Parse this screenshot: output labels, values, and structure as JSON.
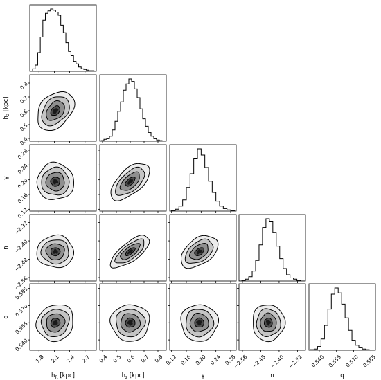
{
  "chart_data": {
    "type": "corner",
    "params": [
      {
        "key": "hR",
        "label_main": "h",
        "label_sub": "R",
        "label_unit": " [kpc]",
        "range": [
          1.62,
          2.92
        ],
        "ticks": [
          "1.8",
          "2.1",
          "2.4",
          "2.7"
        ],
        "hist": [
          [
            1.7,
            0.04
          ],
          [
            1.75,
            0.1
          ],
          [
            1.8,
            0.3
          ],
          [
            1.85,
            0.55
          ],
          [
            1.9,
            0.82
          ],
          [
            1.95,
            0.93
          ],
          [
            2.0,
            0.97
          ],
          [
            2.05,
            1.0
          ],
          [
            2.1,
            0.98
          ],
          [
            2.15,
            0.95
          ],
          [
            2.2,
            0.9
          ],
          [
            2.25,
            0.74
          ],
          [
            2.3,
            0.62
          ],
          [
            2.35,
            0.46
          ],
          [
            2.4,
            0.32
          ],
          [
            2.45,
            0.25
          ],
          [
            2.5,
            0.16
          ],
          [
            2.55,
            0.12
          ],
          [
            2.6,
            0.07
          ],
          [
            2.65,
            0.04
          ],
          [
            2.7,
            0.03
          ],
          [
            2.75,
            0.02
          ],
          [
            2.8,
            0.01
          ],
          [
            2.85,
            0.01
          ]
        ]
      },
      {
        "key": "hz",
        "label_main": "h",
        "label_sub": "z",
        "label_unit": " [kpc]",
        "range": [
          0.38,
          0.86
        ],
        "ticks": [
          "0.4",
          "0.5",
          "0.6",
          "0.7",
          "0.8"
        ],
        "hist": [
          [
            0.4,
            0.01
          ],
          [
            0.42,
            0.03
          ],
          [
            0.44,
            0.04
          ],
          [
            0.46,
            0.08
          ],
          [
            0.48,
            0.18
          ],
          [
            0.5,
            0.32
          ],
          [
            0.52,
            0.48
          ],
          [
            0.54,
            0.63
          ],
          [
            0.56,
            0.82
          ],
          [
            0.58,
            0.92
          ],
          [
            0.6,
            1.0
          ],
          [
            0.62,
            0.96
          ],
          [
            0.64,
            0.84
          ],
          [
            0.66,
            0.7
          ],
          [
            0.68,
            0.52
          ],
          [
            0.7,
            0.36
          ],
          [
            0.72,
            0.24
          ],
          [
            0.74,
            0.14
          ],
          [
            0.76,
            0.08
          ],
          [
            0.78,
            0.04
          ],
          [
            0.8,
            0.02
          ],
          [
            0.82,
            0.01
          ],
          [
            0.84,
            0.005
          ]
        ]
      },
      {
        "key": "gamma",
        "label_main": "γ",
        "label_sub": "",
        "label_unit": "",
        "range": [
          0.115,
          0.295
        ],
        "ticks": [
          "0.12",
          "0.16",
          "0.20",
          "0.24",
          "0.28"
        ],
        "hist": [
          [
            0.125,
            0.01
          ],
          [
            0.135,
            0.03
          ],
          [
            0.145,
            0.08
          ],
          [
            0.155,
            0.18
          ],
          [
            0.165,
            0.38
          ],
          [
            0.175,
            0.6
          ],
          [
            0.185,
            0.85
          ],
          [
            0.195,
            1.0
          ],
          [
            0.205,
            0.9
          ],
          [
            0.215,
            0.7
          ],
          [
            0.225,
            0.48
          ],
          [
            0.235,
            0.3
          ],
          [
            0.245,
            0.16
          ],
          [
            0.255,
            0.08
          ],
          [
            0.265,
            0.04
          ],
          [
            0.275,
            0.02
          ],
          [
            0.285,
            0.01
          ]
        ]
      },
      {
        "key": "n",
        "label_main": "n",
        "label_sub": "",
        "label_unit": "",
        "range": [
          -2.575,
          -2.285
        ],
        "ticks": [
          "−2.56",
          "−2.48",
          "−2.40",
          "−2.32"
        ],
        "hist": [
          [
            -2.555,
            0.01
          ],
          [
            -2.54,
            0.03
          ],
          [
            -2.525,
            0.07
          ],
          [
            -2.51,
            0.16
          ],
          [
            -2.495,
            0.33
          ],
          [
            -2.48,
            0.58
          ],
          [
            -2.465,
            0.86
          ],
          [
            -2.45,
            1.0
          ],
          [
            -2.435,
            0.95
          ],
          [
            -2.42,
            0.78
          ],
          [
            -2.405,
            0.56
          ],
          [
            -2.39,
            0.36
          ],
          [
            -2.375,
            0.2
          ],
          [
            -2.36,
            0.1
          ],
          [
            -2.345,
            0.05
          ],
          [
            -2.33,
            0.03
          ],
          [
            -2.315,
            0.01
          ]
        ]
      },
      {
        "key": "q",
        "label_main": "q",
        "label_sub": "",
        "label_unit": "",
        "range": [
          0.531,
          0.589
        ],
        "ticks": [
          "0.540",
          "0.555",
          "0.570",
          "0.585"
        ],
        "hist": [
          [
            0.534,
            0.01
          ],
          [
            0.537,
            0.02
          ],
          [
            0.54,
            0.06
          ],
          [
            0.543,
            0.18
          ],
          [
            0.546,
            0.4
          ],
          [
            0.549,
            0.66
          ],
          [
            0.552,
            0.9
          ],
          [
            0.555,
            1.0
          ],
          [
            0.558,
            0.92
          ],
          [
            0.561,
            0.74
          ],
          [
            0.564,
            0.52
          ],
          [
            0.567,
            0.32
          ],
          [
            0.57,
            0.16
          ],
          [
            0.573,
            0.08
          ],
          [
            0.576,
            0.04
          ],
          [
            0.579,
            0.02
          ],
          [
            0.582,
            0.01
          ],
          [
            0.585,
            0.005
          ]
        ]
      }
    ],
    "means": [
      2.12,
      0.6,
      0.195,
      -2.447,
      0.555
    ],
    "sigmas": [
      0.18,
      0.07,
      0.025,
      0.035,
      0.008
    ],
    "correlations": {
      "1,0": 0.35,
      "2,0": 0.0,
      "2,1": 0.6,
      "3,0": 0.0,
      "3,1": 0.72,
      "3,2": 0.45,
      "4,0": 0.1,
      "4,1": 0.0,
      "4,2": 0.0,
      "4,3": 0.0
    },
    "contour_levels_sigma": [
      0.5,
      1.0,
      1.5,
      2.0
    ],
    "colors": {
      "line": "#000000",
      "fill_light": "#d9d9d9",
      "fill_dark": "#1a1a1a"
    }
  }
}
